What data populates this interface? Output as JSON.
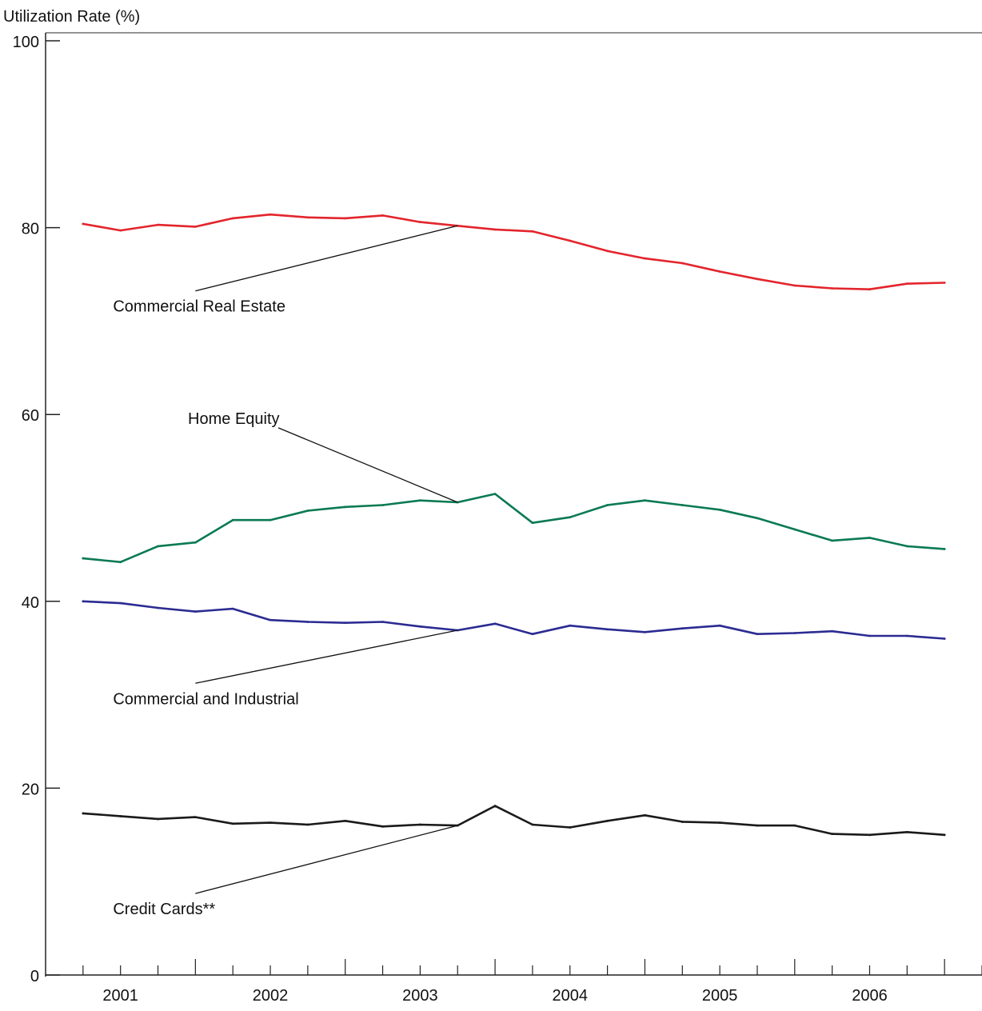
{
  "chart_data": {
    "type": "line",
    "title": "",
    "ylabel": "Utilization Rate (%)",
    "xlabel": "",
    "ylim": [
      0,
      100
    ],
    "yticks": [
      0,
      20,
      40,
      60,
      80,
      100
    ],
    "ytick_labels": [
      "0",
      "20",
      "40",
      "60",
      "80",
      "100"
    ],
    "xlim": [
      2000.5,
      2006.75
    ],
    "year_labels": [
      "2001",
      "2002",
      "2003",
      "2004",
      "2005",
      "2006"
    ],
    "year_positions": [
      2001,
      2002,
      2003,
      2004,
      2005,
      2006
    ],
    "grid": false,
    "legend": "none",
    "x": [
      2000.75,
      2001.0,
      2001.25,
      2001.5,
      2001.75,
      2002.0,
      2002.25,
      2002.5,
      2002.75,
      2003.0,
      2003.25,
      2003.5,
      2003.75,
      2004.0,
      2004.25,
      2004.5,
      2004.75,
      2005.0,
      2005.25,
      2005.5,
      2005.75,
      2006.0,
      2006.25,
      2006.5
    ],
    "series": [
      {
        "name": "Commercial Real Estate",
        "color": "#e3252c",
        "values": [
          80.4,
          79.7,
          80.3,
          80.1,
          81.0,
          81.4,
          81.1,
          81.0,
          81.3,
          80.6,
          80.2,
          79.8,
          79.6,
          78.6,
          77.5,
          76.7,
          76.2,
          75.3,
          74.5,
          73.8,
          73.5,
          73.4,
          74.0,
          74.1
        ]
      },
      {
        "name": "Home Equity",
        "color": "#0a7a52",
        "values": [
          44.6,
          44.2,
          45.9,
          46.3,
          48.7,
          48.7,
          49.7,
          50.1,
          50.3,
          50.8,
          50.6,
          51.5,
          48.4,
          49.0,
          50.3,
          50.8,
          50.3,
          49.8,
          48.9,
          47.7,
          46.5,
          46.8,
          45.9,
          45.6
        ]
      },
      {
        "name": "Commercial and Industrial",
        "color": "#2b2b92",
        "values": [
          40.0,
          39.8,
          39.3,
          38.9,
          39.2,
          38.0,
          37.8,
          37.7,
          37.8,
          37.3,
          36.9,
          37.6,
          36.5,
          37.4,
          37.0,
          36.7,
          37.1,
          37.4,
          36.5,
          36.6,
          36.8,
          36.3,
          36.3,
          36.0
        ]
      },
      {
        "name": "Credit Cards**",
        "color": "#1a1a1a",
        "values": [
          17.3,
          17.0,
          16.7,
          16.9,
          16.2,
          16.3,
          16.1,
          16.5,
          15.9,
          16.1,
          16.0,
          18.1,
          16.1,
          15.8,
          16.5,
          17.1,
          16.4,
          16.3,
          16.0,
          16.0,
          15.1,
          15.0,
          15.3,
          15.0
        ]
      }
    ],
    "annotations": [
      {
        "text": "Commercial Real Estate",
        "series": 0,
        "point_x": 2003.25,
        "point_y": 80.2,
        "label_x": 2001.5,
        "label_y": 71
      },
      {
        "text": "Home Equity",
        "series": 1,
        "point_x": 2003.25,
        "point_y": 50.6,
        "label_x": 2002.0,
        "label_y": 59
      },
      {
        "text": "Commercial and Industrial",
        "series": 2,
        "point_x": 2003.25,
        "point_y": 36.9,
        "label_x": 2001.5,
        "label_y": 29
      },
      {
        "text": "Credit Cards**",
        "series": 3,
        "point_x": 2003.25,
        "point_y": 16.0,
        "label_x": 2001.5,
        "label_y": 6.5
      }
    ]
  }
}
